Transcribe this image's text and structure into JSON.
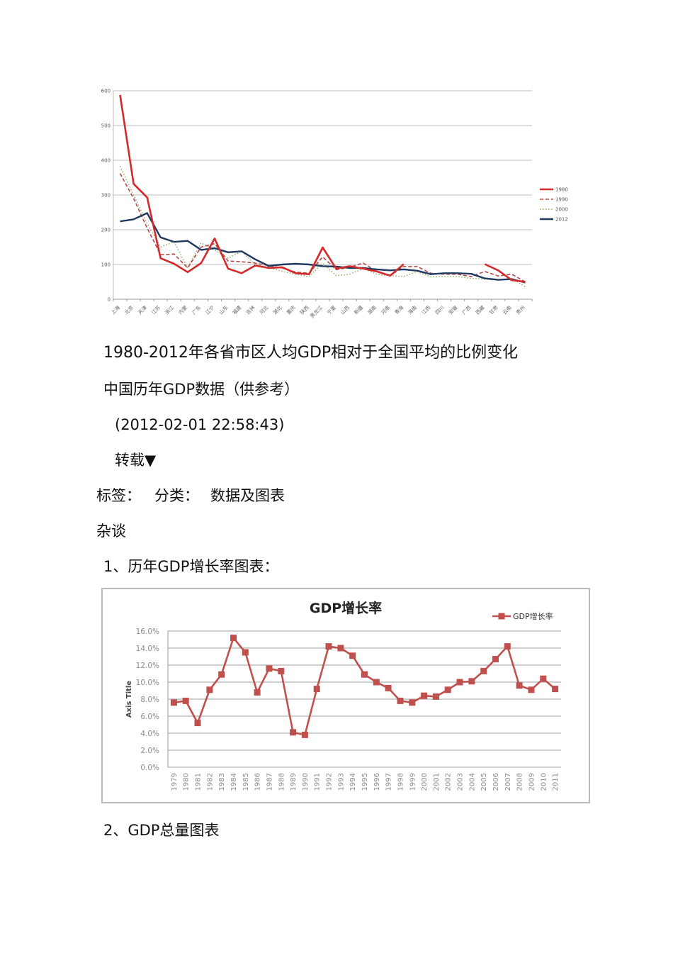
{
  "captions": {
    "chart1_title": "1980-2012年各省市区人均GDP相对于全国平均的比例变化",
    "subtitle": "中国历年GDP数据（供参考）",
    "timestamp": "(2012-02-01 22:58:43)",
    "repost": "转载▼",
    "tags_label": "标签：",
    "category_label": "分类：",
    "category_value": "数据及图表",
    "misc": "杂谈",
    "section1": "1、历年GDP增长率图表：",
    "section2": "2、GDP总量图表"
  },
  "chart_data": [
    {
      "type": "line",
      "title": "1980-2012年各省市区人均GDP相对于全国平均的比例变化",
      "xlabel": "",
      "ylabel": "",
      "ylim": [
        0,
        600
      ],
      "yticks": [
        "0",
        "100",
        "200",
        "300",
        "400",
        "500",
        "600"
      ],
      "grid": true,
      "legend_position": "right",
      "categories": [
        "上海",
        "北京",
        "天津",
        "江苏",
        "浙江",
        "内蒙",
        "广东",
        "辽宁",
        "山东",
        "福建",
        "吉林",
        "河北",
        "湖北",
        "重庆",
        "陕西",
        "黑龙江",
        "宁夏",
        "山西",
        "新疆",
        "湖南",
        "河南",
        "青海",
        "海南",
        "江西",
        "四川",
        "安徽",
        "广西",
        "西藏",
        "甘肃",
        "云南",
        "贵州"
      ],
      "series": [
        {
          "name": "1980",
          "color": "#d42a2a",
          "style": "solid",
          "values": [
            588,
            332,
            293,
            118,
            102,
            78,
            104,
            175,
            88,
            75,
            97,
            90,
            92,
            75,
            72,
            149,
            88,
            95,
            88,
            80,
            68,
            101,
            null,
            null,
            null,
            null,
            null,
            101,
            83,
            55,
            50
          ]
        },
        {
          "name": "1990",
          "color": "#b04848",
          "style": "dashed",
          "values": [
            362,
            290,
            205,
            128,
            130,
            90,
            150,
            160,
            110,
            108,
            104,
            97,
            90,
            78,
            75,
            122,
            85,
            92,
            104,
            80,
            68,
            94,
            94,
            75,
            72,
            72,
            65,
            80,
            67,
            72,
            50
          ]
        },
        {
          "name": "2000",
          "color": "#8aa860",
          "style": "dotted",
          "values": [
            383,
            300,
            218,
            150,
            165,
            90,
            162,
            142,
            118,
            138,
            100,
            92,
            80,
            72,
            65,
            104,
            68,
            72,
            88,
            72,
            68,
            65,
            80,
            64,
            65,
            65,
            60,
            58,
            55,
            60,
            36
          ]
        },
        {
          "name": "2012",
          "color": "#1f3a5f",
          "style": "solid",
          "values": [
            224,
            230,
            248,
            178,
            165,
            168,
            142,
            147,
            135,
            138,
            115,
            96,
            100,
            102,
            100,
            95,
            94,
            90,
            90,
            86,
            83,
            86,
            82,
            72,
            75,
            75,
            73,
            60,
            56,
            58,
            48
          ]
        }
      ]
    },
    {
      "type": "line",
      "title": "GDP增长率",
      "xlabel": "",
      "ylabel": "Axis Title",
      "ylim": [
        0,
        16
      ],
      "yticks": [
        "0.0%",
        "2.0%",
        "4.0%",
        "6.0%",
        "8.0%",
        "10.0%",
        "12.0%",
        "14.0%",
        "16.0%"
      ],
      "grid": true,
      "legend_position": "top-right",
      "categories": [
        "1979",
        "1980",
        "1981",
        "1982",
        "1983",
        "1984",
        "1985",
        "1986",
        "1987",
        "1988",
        "1989",
        "1990",
        "1991",
        "1992",
        "1993",
        "1994",
        "1995",
        "1996",
        "1997",
        "1998",
        "1999",
        "2000",
        "2001",
        "2002",
        "2003",
        "2004",
        "2005",
        "2006",
        "2007",
        "2008",
        "2009",
        "2010",
        "2011"
      ],
      "series": [
        {
          "name": "GDP增长率",
          "color": "#c0504d",
          "marker": "square",
          "values": [
            7.6,
            7.8,
            5.2,
            9.1,
            10.9,
            15.2,
            13.5,
            8.8,
            11.6,
            11.3,
            4.1,
            3.8,
            9.2,
            14.2,
            14.0,
            13.1,
            10.9,
            10.0,
            9.3,
            7.8,
            7.6,
            8.4,
            8.3,
            9.1,
            10.0,
            10.1,
            11.3,
            12.7,
            14.2,
            9.6,
            9.1,
            10.4,
            9.2
          ]
        }
      ]
    }
  ]
}
